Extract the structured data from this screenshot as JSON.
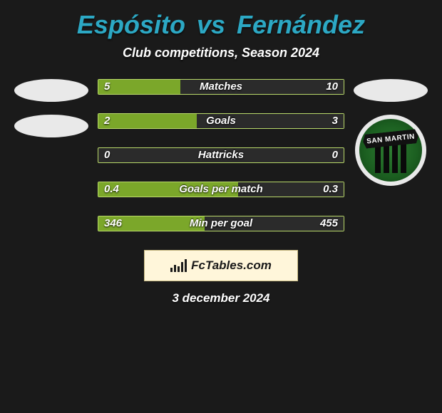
{
  "title_color": "#2ca8c4",
  "title_player1": "Espósito",
  "title_vs": "vs",
  "title_player2": "Fernández",
  "subtitle": "Club competitions, Season 2024",
  "date": "3 december 2024",
  "logo_text": "FcTables.com",
  "badge_text": "SAN MARTIN",
  "colors": {
    "left_fill": "#7ba72a",
    "right_fill": "#2b2b2b",
    "border": "#b9d96a",
    "background": "#1a1a1a"
  },
  "bars": [
    {
      "label": "Matches",
      "left_val": "5",
      "right_val": "10",
      "left_pct": 33.3,
      "right_pct": 66.7
    },
    {
      "label": "Goals",
      "left_val": "2",
      "right_val": "3",
      "left_pct": 40.0,
      "right_pct": 60.0
    },
    {
      "label": "Hattricks",
      "left_val": "0",
      "right_val": "0",
      "left_pct": 0,
      "right_pct": 0
    },
    {
      "label": "Goals per match",
      "left_val": "0.4",
      "right_val": "0.3",
      "left_pct": 57.1,
      "right_pct": 42.9
    },
    {
      "label": "Min per goal",
      "left_val": "346",
      "right_val": "455",
      "left_pct": 43.2,
      "right_pct": 56.8
    }
  ]
}
